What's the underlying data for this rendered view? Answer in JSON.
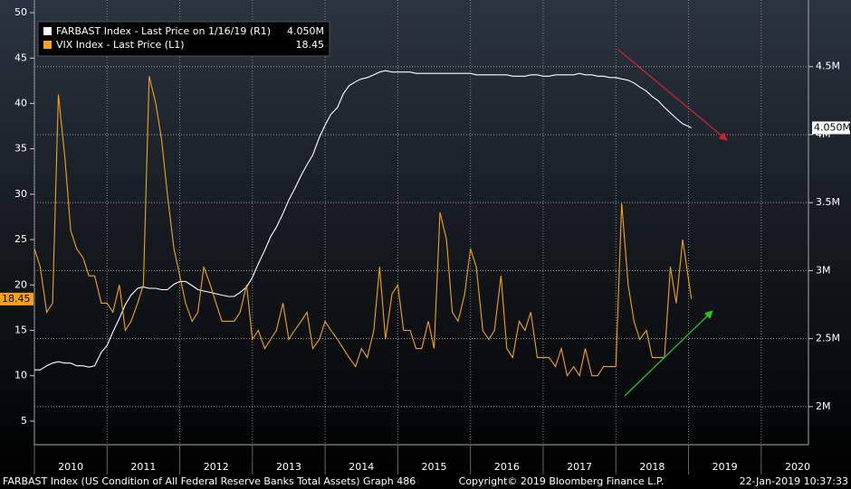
{
  "chart_data": {
    "type": "line",
    "x": [
      2010,
      2010.08,
      2010.17,
      2010.25,
      2010.33,
      2010.42,
      2010.5,
      2010.58,
      2010.67,
      2010.75,
      2010.83,
      2010.92,
      2011,
      2011.08,
      2011.17,
      2011.25,
      2011.33,
      2011.42,
      2011.5,
      2011.58,
      2011.67,
      2011.75,
      2011.83,
      2011.92,
      2012,
      2012.08,
      2012.17,
      2012.25,
      2012.33,
      2012.42,
      2012.5,
      2012.58,
      2012.67,
      2012.75,
      2012.83,
      2012.92,
      2013,
      2013.08,
      2013.17,
      2013.25,
      2013.33,
      2013.42,
      2013.5,
      2013.58,
      2013.67,
      2013.75,
      2013.83,
      2013.92,
      2014,
      2014.08,
      2014.17,
      2014.25,
      2014.33,
      2014.42,
      2014.5,
      2014.58,
      2014.67,
      2014.75,
      2014.83,
      2014.92,
      2015,
      2015.08,
      2015.17,
      2015.25,
      2015.33,
      2015.42,
      2015.5,
      2015.58,
      2015.67,
      2015.75,
      2015.83,
      2015.92,
      2016,
      2016.08,
      2016.17,
      2016.25,
      2016.33,
      2016.42,
      2016.5,
      2016.58,
      2016.67,
      2016.75,
      2016.83,
      2016.92,
      2017,
      2017.08,
      2017.17,
      2017.25,
      2017.33,
      2017.42,
      2017.5,
      2017.58,
      2017.67,
      2017.75,
      2017.83,
      2017.92,
      2018,
      2018.08,
      2018.17,
      2018.25,
      2018.33,
      2018.42,
      2018.5,
      2018.58,
      2018.67,
      2018.75,
      2018.83,
      2018.92,
      2019.04
    ],
    "series": [
      {
        "name": "FARBAST Index - Last Price on 1/16/19 (R1)",
        "last_label": "4.050M",
        "color": "#ffffff",
        "axis": "y2",
        "values": [
          2.27,
          2.27,
          2.3,
          2.32,
          2.33,
          2.32,
          2.32,
          2.3,
          2.3,
          2.29,
          2.3,
          2.4,
          2.45,
          2.55,
          2.65,
          2.75,
          2.82,
          2.87,
          2.88,
          2.87,
          2.87,
          2.86,
          2.86,
          2.9,
          2.92,
          2.92,
          2.89,
          2.86,
          2.85,
          2.84,
          2.83,
          2.82,
          2.81,
          2.81,
          2.84,
          2.88,
          2.95,
          3.05,
          3.15,
          3.25,
          3.32,
          3.42,
          3.52,
          3.6,
          3.7,
          3.78,
          3.85,
          3.98,
          4.07,
          4.15,
          4.2,
          4.3,
          4.36,
          4.39,
          4.41,
          4.42,
          4.44,
          4.46,
          4.47,
          4.46,
          4.46,
          4.46,
          4.46,
          4.45,
          4.45,
          4.45,
          4.45,
          4.45,
          4.45,
          4.45,
          4.45,
          4.45,
          4.45,
          4.44,
          4.44,
          4.44,
          4.44,
          4.44,
          4.44,
          4.43,
          4.43,
          4.43,
          4.44,
          4.44,
          4.43,
          4.43,
          4.44,
          4.44,
          4.44,
          4.44,
          4.45,
          4.44,
          4.44,
          4.43,
          4.43,
          4.42,
          4.42,
          4.41,
          4.4,
          4.38,
          4.35,
          4.32,
          4.28,
          4.25,
          4.2,
          4.16,
          4.12,
          4.08,
          4.05
        ]
      },
      {
        "name": "VIX Index - Last Price (L1)",
        "last_label": "18.45",
        "color": "#f7a11a",
        "values": [
          24,
          22,
          17,
          18,
          41,
          34,
          26,
          24,
          23,
          21,
          21,
          18,
          18,
          17,
          20,
          15,
          16,
          18,
          20,
          43,
          40,
          36,
          30,
          24,
          21,
          18,
          16,
          17,
          22,
          20,
          18,
          16,
          16,
          16,
          17,
          20,
          14,
          15,
          13,
          14,
          15,
          18,
          14,
          15,
          16,
          17,
          13,
          14,
          16,
          15,
          14,
          13,
          12,
          11,
          13,
          12,
          15,
          22,
          14,
          19,
          20,
          15,
          15,
          13,
          13,
          16,
          13,
          28,
          25,
          17,
          16,
          19,
          24,
          22,
          15,
          14,
          15,
          21,
          13,
          12,
          16,
          15,
          17,
          12,
          12,
          12,
          11,
          13,
          10,
          11,
          10,
          13,
          10,
          10,
          11,
          11,
          11,
          29,
          20,
          16,
          14,
          15,
          12,
          12,
          12,
          22,
          18,
          25,
          18.45
        ]
      }
    ],
    "xlim": [
      2010,
      2020.65
    ],
    "xticks": [
      2010,
      2011,
      2012,
      2013,
      2014,
      2015,
      2016,
      2017,
      2018,
      2019,
      2020
    ],
    "ylim": [
      2.4,
      51.4
    ],
    "yticks": [
      5,
      10,
      15,
      20,
      25,
      30,
      35,
      40,
      45,
      50
    ],
    "y2lim": [
      1.72,
      4.99
    ],
    "y2ticks": [
      {
        "value": 2,
        "label": "2M"
      },
      {
        "value": 2.5,
        "label": "2.5M"
      },
      {
        "value": 3,
        "label": "3M"
      },
      {
        "value": 3.5,
        "label": "3.5M"
      },
      {
        "value": 4,
        "label": "4M"
      },
      {
        "value": 4.5,
        "label": "4.5M"
      }
    ],
    "grid": true,
    "footer": {
      "left": "FARBAST Index (US Condition of All Federal Reserve Banks Total Assets) Graph 486",
      "center": "Copyright© 2019 Bloomberg Finance L.P.",
      "right": "22-Jan-2019 10:37:33"
    }
  }
}
